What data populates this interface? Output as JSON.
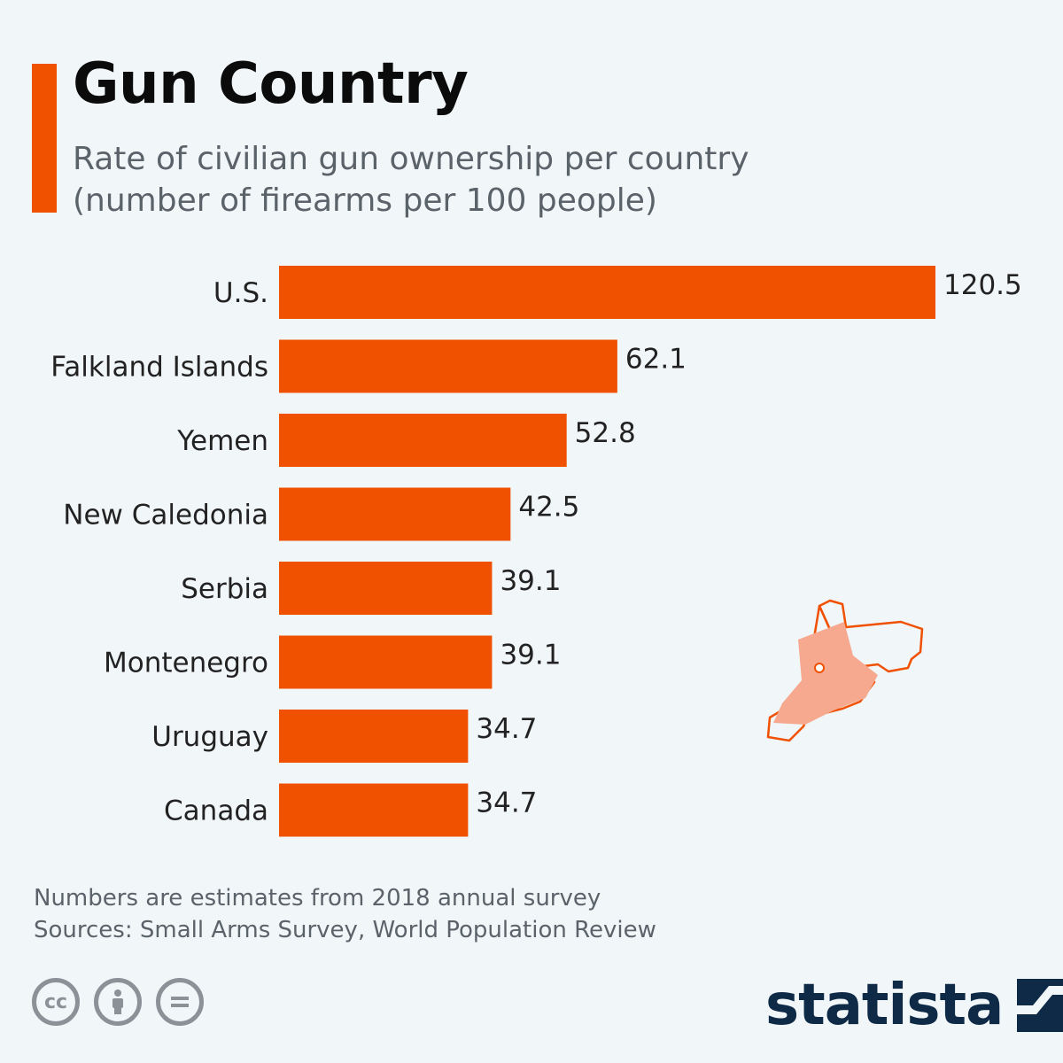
{
  "header": {
    "title": "Gun Country",
    "subtitle_line1": "Rate of civilian gun ownership per country",
    "subtitle_line2": "(number of firearms per 100 people)"
  },
  "footer": {
    "note": "Numbers are estimates from 2018 annual survey",
    "sources": "Sources: Small Arms Survey, World Population Review",
    "brand": "statista",
    "license_icons": [
      "cc-icon",
      "attribution-icon",
      "no-derivatives-icon"
    ]
  },
  "colors": {
    "bar": "#f05100",
    "title": "#0b0b0b",
    "text": "#222222",
    "muted": "#5b636a",
    "background": "#f1f6f9",
    "brand": "#0f2a47",
    "illustration_fill": "#f6a98f"
  },
  "illustration": "gun-holster-icon",
  "chart_data": {
    "type": "bar",
    "orientation": "horizontal",
    "title": "Gun Country",
    "subtitle": "Rate of civilian gun ownership per country (number of firearms per 100 people)",
    "categories": [
      "U.S.",
      "Falkland Islands",
      "Yemen",
      "New Caledonia",
      "Serbia",
      "Montenegro",
      "Uruguay",
      "Canada"
    ],
    "values": [
      120.5,
      62.1,
      52.8,
      42.5,
      39.1,
      39.1,
      34.7,
      34.7
    ],
    "value_labels": [
      "120.5",
      "62.1",
      "52.8",
      "42.5",
      "39.1",
      "39.1",
      "34.7",
      "34.7"
    ],
    "xlim": [
      0,
      120.5
    ],
    "grid": false,
    "legend": "none"
  }
}
